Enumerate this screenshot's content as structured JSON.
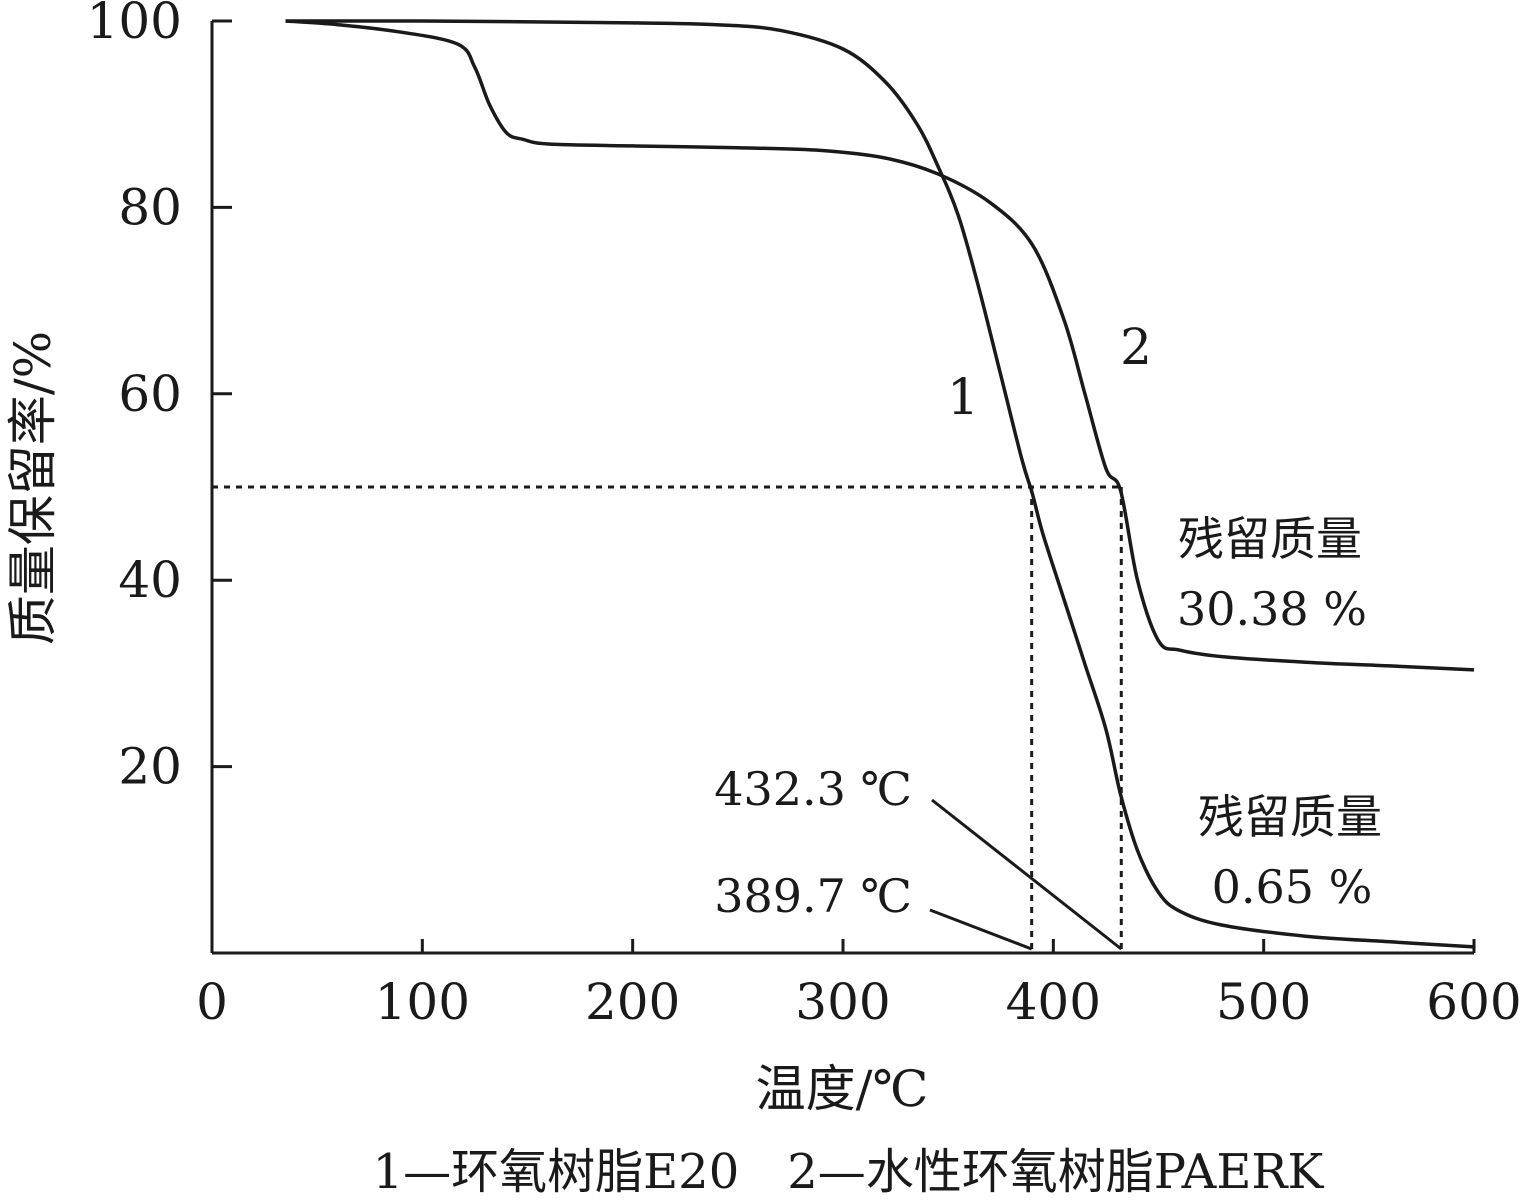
{
  "chart_data": {
    "type": "line",
    "xlabel": "温度/℃",
    "ylabel": "质量保留率/%",
    "xlim": [
      0,
      600
    ],
    "ylim": [
      0,
      100
    ],
    "x_ticks": [
      "0",
      "100",
      "200",
      "300",
      "400",
      "500",
      "600"
    ],
    "y_ticks": [
      "20",
      "40",
      "60",
      "80",
      "100"
    ],
    "grid": false,
    "series": [
      {
        "name": "1",
        "x": [
          35,
          100,
          200,
          240,
          270,
          300,
          320,
          335,
          345,
          355,
          365,
          375,
          385,
          390,
          395,
          405,
          415,
          425,
          432,
          440,
          450,
          460,
          480,
          520,
          560,
          600
        ],
        "y": [
          100,
          100,
          99.8,
          99.6,
          99,
          97,
          93.5,
          89,
          84.5,
          79,
          71,
          62,
          53,
          49.3,
          45,
          38,
          31,
          24,
          17,
          11,
          6.5,
          4.5,
          3,
          1.8,
          1.2,
          0.65
        ]
      },
      {
        "name": "2",
        "x": [
          35,
          60,
          90,
          117,
          125,
          132,
          140,
          148,
          160,
          200,
          250,
          290,
          320,
          345,
          370,
          390,
          405,
          415,
          425,
          432,
          440,
          450,
          460,
          480,
          520,
          560,
          600
        ],
        "y": [
          100,
          99.6,
          98.8,
          97.5,
          95,
          91,
          88,
          87.3,
          86.8,
          86.6,
          86.4,
          86.1,
          85.3,
          83.6,
          80.5,
          76,
          68,
          60,
          52,
          49.6,
          40,
          33.5,
          32.5,
          31.8,
          31.2,
          30.8,
          30.38
        ]
      }
    ],
    "reference": {
      "y": 50,
      "x1": 389.7,
      "x2": 432.3
    },
    "annotations": {
      "series1_label": "1",
      "series2_label": "2",
      "t389": "389.7 ℃",
      "t432": "432.3 ℃",
      "residual2_title": "残留质量",
      "residual2_value": "30.38 %",
      "residual1_title": "残留质量",
      "residual1_value": "0.65 %"
    },
    "legend_text": "1—环氧树脂E20　2—水性环氧树脂PAERK"
  }
}
